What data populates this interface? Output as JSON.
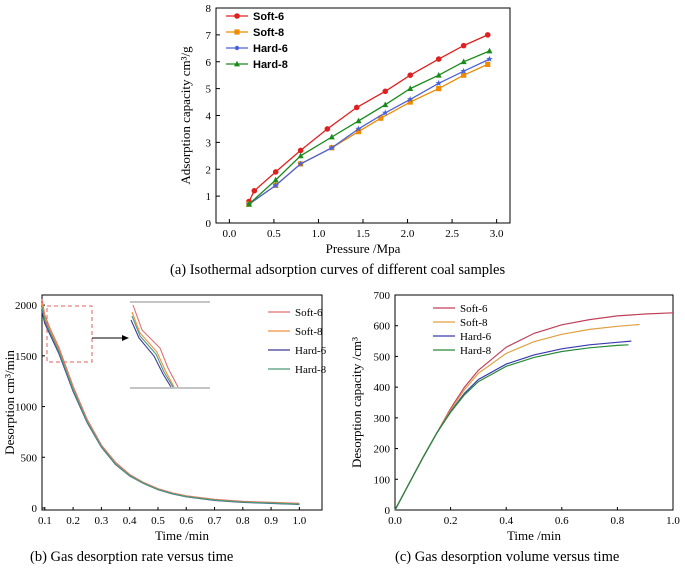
{
  "captions": {
    "a": "(a) Isothermal adsorption curves of different coal samples",
    "b": "(b) Gas desorption rate versus time",
    "c": "(c) Gas desorption volume versus time"
  },
  "chart_data": [
    {
      "id": "a",
      "type": "line",
      "title": "",
      "xlabel": "Pressure /Mpa",
      "ylabel": "Adsorption capacity cm³/g",
      "xlim": [
        -0.15,
        3.15
      ],
      "ylim": [
        0,
        8
      ],
      "xticks": [
        "0.0",
        "0.5",
        "1.0",
        "1.5",
        "2.0",
        "2.5",
        "3.0"
      ],
      "yticks": [
        "0",
        "1",
        "2",
        "3",
        "4",
        "5",
        "6",
        "7",
        "8"
      ],
      "legend_position": "top-left",
      "series": [
        {
          "name": "Soft-6",
          "color": "#e02020",
          "marker": "circle",
          "x": [
            0.22,
            0.28,
            0.52,
            0.8,
            1.1,
            1.43,
            1.75,
            2.03,
            2.35,
            2.63,
            2.9
          ],
          "y": [
            0.8,
            1.2,
            1.9,
            2.7,
            3.5,
            4.3,
            4.9,
            5.5,
            6.1,
            6.6,
            7.0
          ]
        },
        {
          "name": "Soft-8",
          "color": "#f08a00",
          "marker": "square",
          "x": [
            0.22,
            0.52,
            0.8,
            1.15,
            1.45,
            1.7,
            2.03,
            2.35,
            2.63,
            2.9
          ],
          "y": [
            0.7,
            1.4,
            2.2,
            2.8,
            3.4,
            3.9,
            4.5,
            5.0,
            5.5,
            5.9
          ]
        },
        {
          "name": "Hard-6",
          "color": "#4a63d8",
          "marker": "star",
          "x": [
            0.22,
            0.52,
            0.8,
            1.15,
            1.45,
            1.75,
            2.03,
            2.35,
            2.63,
            2.92
          ],
          "y": [
            0.7,
            1.4,
            2.2,
            2.8,
            3.5,
            4.1,
            4.6,
            5.2,
            5.65,
            6.1
          ]
        },
        {
          "name": "Hard-8",
          "color": "#1a8a1a",
          "marker": "triangle",
          "x": [
            0.22,
            0.52,
            0.8,
            1.15,
            1.45,
            1.75,
            2.03,
            2.35,
            2.63,
            2.92
          ],
          "y": [
            0.7,
            1.6,
            2.5,
            3.2,
            3.8,
            4.4,
            5.0,
            5.5,
            6.0,
            6.4
          ]
        }
      ]
    },
    {
      "id": "b",
      "type": "line",
      "title": "",
      "xlabel": "Time /min",
      "ylabel": "Desorption cm³/min",
      "xlim": [
        0.09,
        1.08
      ],
      "ylim": [
        -20,
        2100
      ],
      "xticks": [
        "0.1",
        "0.2",
        "0.3",
        "0.4",
        "0.5",
        "0.6",
        "0.7",
        "0.8",
        "0.9",
        "1.0"
      ],
      "yticks": [
        "0",
        "500",
        "1000",
        "1500",
        "2000"
      ],
      "legend_position": "top-right",
      "inset": "zoom of the initial decline (0.09–0.13 min)",
      "series": [
        {
          "name": "Soft-6",
          "color": "#e07070",
          "x": [
            0.09,
            0.1,
            0.12,
            0.15,
            0.2,
            0.25,
            0.3,
            0.35,
            0.4,
            0.45,
            0.5,
            0.55,
            0.6,
            0.7,
            0.8,
            0.9,
            1.0
          ],
          "y": [
            2060,
            1900,
            1760,
            1580,
            1200,
            870,
            620,
            450,
            330,
            250,
            190,
            150,
            120,
            85,
            65,
            55,
            45
          ]
        },
        {
          "name": "Soft-8",
          "color": "#f09040",
          "x": [
            0.09,
            0.1,
            0.12,
            0.15,
            0.2,
            0.25,
            0.3,
            0.35,
            0.4,
            0.45,
            0.5,
            0.55,
            0.6,
            0.7,
            0.8,
            0.9,
            1.0
          ],
          "y": [
            2020,
            1880,
            1740,
            1560,
            1180,
            855,
            610,
            440,
            320,
            245,
            185,
            145,
            115,
            80,
            60,
            50,
            40
          ]
        },
        {
          "name": "Hard-6",
          "color": "#3a3a9a",
          "x": [
            0.09,
            0.1,
            0.12,
            0.15,
            0.2,
            0.25,
            0.3,
            0.35,
            0.4,
            0.45,
            0.5,
            0.55,
            0.6,
            0.7,
            0.8,
            0.9,
            1.0
          ],
          "y": [
            1940,
            1820,
            1700,
            1520,
            1150,
            840,
            600,
            430,
            315,
            240,
            180,
            140,
            110,
            75,
            55,
            45,
            35
          ]
        },
        {
          "name": "Hard-8",
          "color": "#4a9a7a",
          "x": [
            0.09,
            0.1,
            0.12,
            0.15,
            0.2,
            0.25,
            0.3,
            0.35,
            0.4,
            0.45,
            0.5,
            0.55,
            0.6,
            0.7,
            0.8,
            0.9,
            1.0
          ],
          "y": [
            1980,
            1850,
            1720,
            1540,
            1165,
            848,
            605,
            435,
            318,
            242,
            182,
            142,
            112,
            78,
            58,
            48,
            38
          ]
        }
      ]
    },
    {
      "id": "c",
      "type": "line",
      "title": "",
      "xlabel": "Time /min",
      "ylabel": "Desorption capacity /cm³",
      "xlim": [
        0.0,
        1.0
      ],
      "ylim": [
        0,
        700
      ],
      "xticks": [
        "0.0",
        "0.2",
        "0.4",
        "0.6",
        "0.8",
        "1.0"
      ],
      "yticks": [
        "0",
        "100",
        "200",
        "300",
        "400",
        "500",
        "600",
        "700"
      ],
      "legend_position": "top-left",
      "series": [
        {
          "name": "Soft-6",
          "color": "#c0405a",
          "x": [
            0.0,
            0.05,
            0.1,
            0.15,
            0.2,
            0.25,
            0.3,
            0.4,
            0.5,
            0.6,
            0.7,
            0.8,
            0.9,
            1.0
          ],
          "y": [
            0,
            85,
            170,
            250,
            330,
            400,
            455,
            530,
            575,
            603,
            620,
            632,
            638,
            642
          ]
        },
        {
          "name": "Soft-8",
          "color": "#e0a040",
          "x": [
            0.0,
            0.05,
            0.1,
            0.15,
            0.2,
            0.25,
            0.3,
            0.4,
            0.5,
            0.6,
            0.7,
            0.8,
            0.88
          ],
          "y": [
            0,
            85,
            170,
            250,
            325,
            392,
            445,
            510,
            548,
            572,
            588,
            598,
            604
          ]
        },
        {
          "name": "Hard-6",
          "color": "#3a3ab0",
          "x": [
            0.0,
            0.05,
            0.1,
            0.15,
            0.2,
            0.25,
            0.3,
            0.4,
            0.5,
            0.6,
            0.7,
            0.8,
            0.85
          ],
          "y": [
            0,
            85,
            170,
            250,
            320,
            380,
            425,
            475,
            505,
            525,
            538,
            546,
            550
          ]
        },
        {
          "name": "Hard-8",
          "color": "#2a8a3a",
          "x": [
            0.0,
            0.05,
            0.1,
            0.15,
            0.2,
            0.25,
            0.3,
            0.4,
            0.5,
            0.6,
            0.7,
            0.8,
            0.84
          ],
          "y": [
            0,
            85,
            170,
            250,
            318,
            375,
            418,
            468,
            497,
            516,
            528,
            536,
            538
          ]
        }
      ]
    }
  ]
}
